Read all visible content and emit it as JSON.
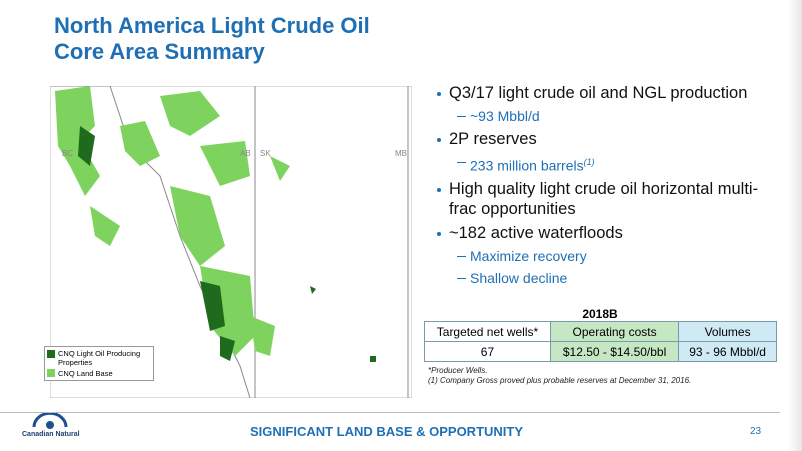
{
  "header": {
    "title_lines": [
      "North America Light Crude Oil",
      "Core Area Summary"
    ]
  },
  "map": {
    "labels": [
      "BC",
      "AB",
      "SK",
      "MB"
    ],
    "legend": [
      "CNQ Light Oil Producing Properties",
      "CNQ Land Base"
    ]
  },
  "bullets": [
    {
      "text": "Q3/17 light crude oil and NGL production",
      "subs": [
        {
          "text": "~93 Mbbl/d"
        }
      ]
    },
    {
      "text": "2P reserves",
      "subs": [
        {
          "text": "233 million barrels",
          "note": "(1)"
        }
      ]
    },
    {
      "text": "High quality light crude oil horizontal multi-frac opportunities"
    },
    {
      "text": "~182 active waterfloods",
      "subs": [
        {
          "text": "Maximize recovery"
        },
        {
          "text": "Shallow decline"
        }
      ]
    }
  ],
  "table": {
    "caption": "2018B",
    "columns": [
      "Targeted net wells*",
      "Operating costs",
      "Volumes"
    ],
    "rows": [
      [
        "67",
        "$12.50 - $14.50/bbl",
        "93 - 96 Mbbl/d"
      ]
    ]
  },
  "footnotes": [
    "*Producer Wells.",
    "(1) Company Gross proved plus probable reserves at December 31, 2016."
  ],
  "footer": {
    "logo": "Canadian Natural",
    "tagline": "SIGNIFICANT LAND BASE & OPPORTUNITY",
    "page": "23"
  }
}
